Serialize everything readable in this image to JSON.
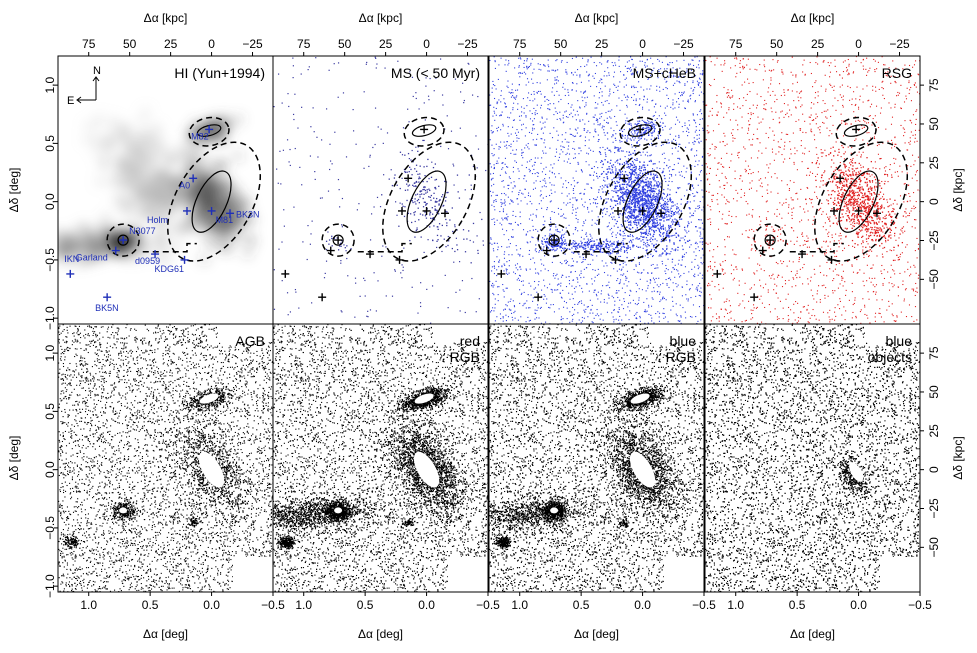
{
  "chart_data": {
    "type": "scatter",
    "layout": "2x4 grid of star-count maps sharing axes",
    "axes": {
      "bottom_label": "Δα [deg]",
      "bottom_ticks": [
        "1.0",
        "0.5",
        "0.0",
        "−0.5"
      ],
      "left_label": "Δδ [deg]",
      "left_ticks": [
        "1.0",
        "0.5",
        "0.0",
        "−0.5",
        "−1.0"
      ],
      "top_label": "Δα [kpc]",
      "top_ticks": [
        "75",
        "50",
        "25",
        "0",
        "−25"
      ],
      "right_label": "Δδ [kpc]",
      "right_ticks": [
        "75",
        "50",
        "25",
        "0",
        "−25",
        "−50"
      ],
      "xlim": [
        1.25,
        -0.5
      ],
      "ylim": [
        -1.05,
        1.25
      ]
    },
    "panels": [
      {
        "title": "HI (Yun+1994)",
        "color": "#000000",
        "marker_color": "#1f2fb8",
        "label_color": "#1f2fb8"
      },
      {
        "title": "MS (< 50 Myr)",
        "color": "#3a3aa0"
      },
      {
        "title": "MS+cHeB",
        "color": "#2f3fe0"
      },
      {
        "title": "RSG",
        "color": "#e02020"
      },
      {
        "title": "AGB",
        "color": "#000000"
      },
      {
        "title": "red\nRGB",
        "color": "#000000"
      },
      {
        "title": "blue\nRGB",
        "color": "#000000"
      },
      {
        "title": "blue\nobjects",
        "color": "#000000"
      }
    ],
    "compass": {
      "north": "N",
      "east": "E"
    },
    "galaxies": [
      {
        "label": "M81",
        "x": 0.0,
        "y": 0.0
      },
      {
        "label": "M82",
        "x": 0.0,
        "y": 0.6
      },
      {
        "label": "N3077",
        "x": 0.72,
        "y": -0.35
      }
    ],
    "objects": [
      {
        "label": "M82",
        "x": 0.02,
        "y": 0.62
      },
      {
        "label": "A0",
        "x": 0.15,
        "y": 0.2
      },
      {
        "label": "Holm",
        "x": 0.2,
        "y": -0.08
      },
      {
        "label": "M81",
        "x": 0.0,
        "y": -0.08
      },
      {
        "label": "BK3N",
        "x": -0.15,
        "y": -0.1
      },
      {
        "label": "N3077",
        "x": 0.72,
        "y": -0.33
      },
      {
        "label": "Garland",
        "x": 0.78,
        "y": -0.42
      },
      {
        "label": "d0959",
        "x": 0.46,
        "y": -0.45
      },
      {
        "label": "KDG61",
        "x": 0.22,
        "y": -0.5
      },
      {
        "label": "IKN",
        "x": 1.15,
        "y": -0.62
      },
      {
        "label": "BK5N",
        "x": 0.85,
        "y": -0.82
      }
    ]
  }
}
